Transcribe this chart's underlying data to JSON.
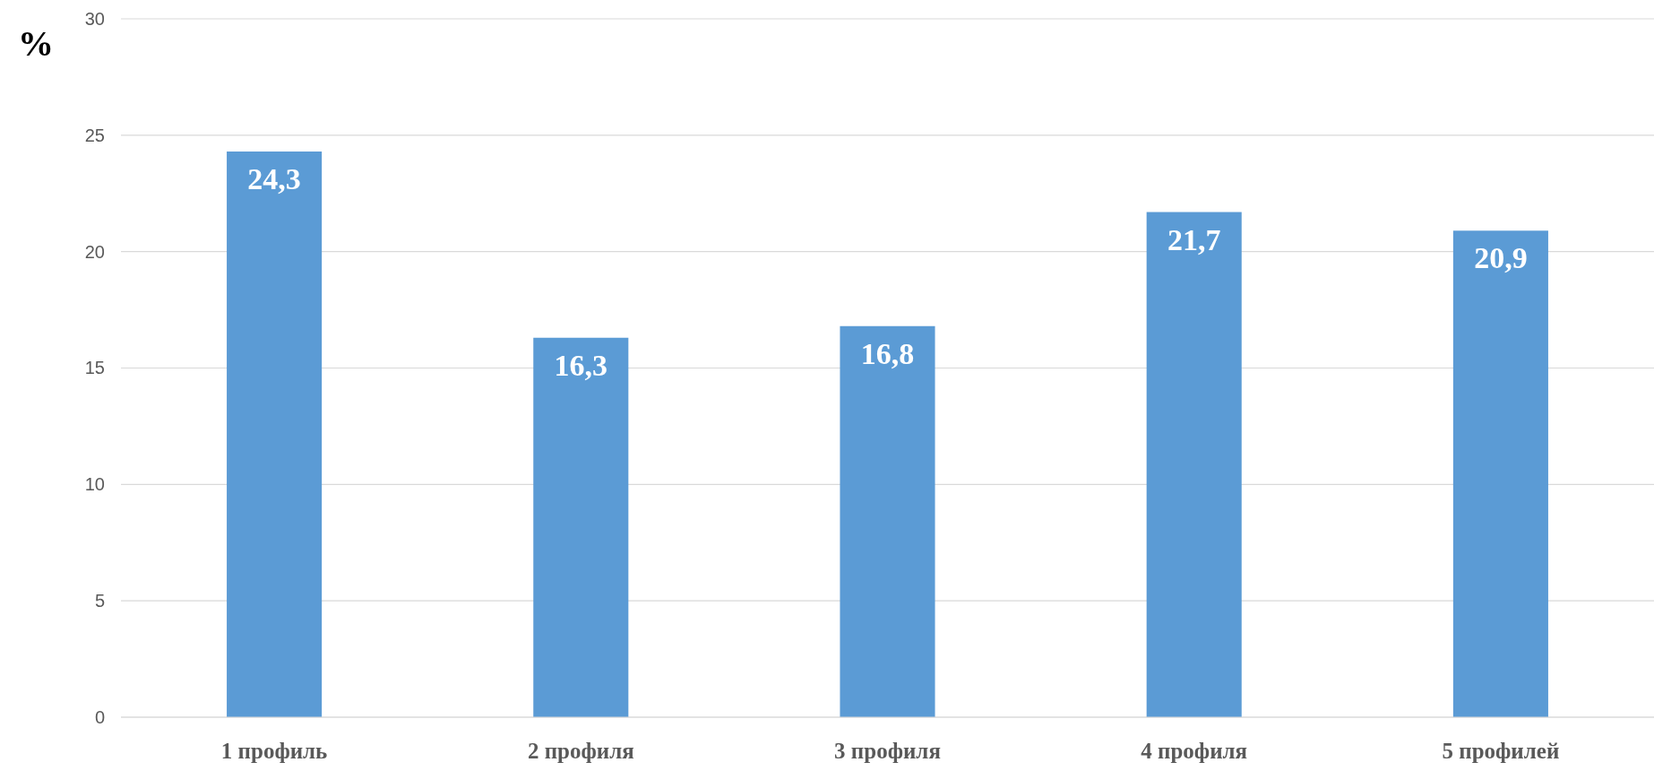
{
  "chart_data": {
    "type": "bar",
    "ylabel": "%",
    "categories": [
      "1 профиль",
      "2 профиля",
      "3 профиля",
      "4 профиля",
      "5 профилей"
    ],
    "values": [
      24.3,
      16.3,
      16.8,
      21.7,
      20.9
    ],
    "value_labels": [
      "24,3",
      "16,3",
      "16,8",
      "21,7",
      "20,9"
    ],
    "color": "#5b9bd5",
    "ylim": [
      0,
      30
    ],
    "yticks": [
      0,
      5,
      10,
      15,
      20,
      25,
      30
    ],
    "grid": "y"
  }
}
